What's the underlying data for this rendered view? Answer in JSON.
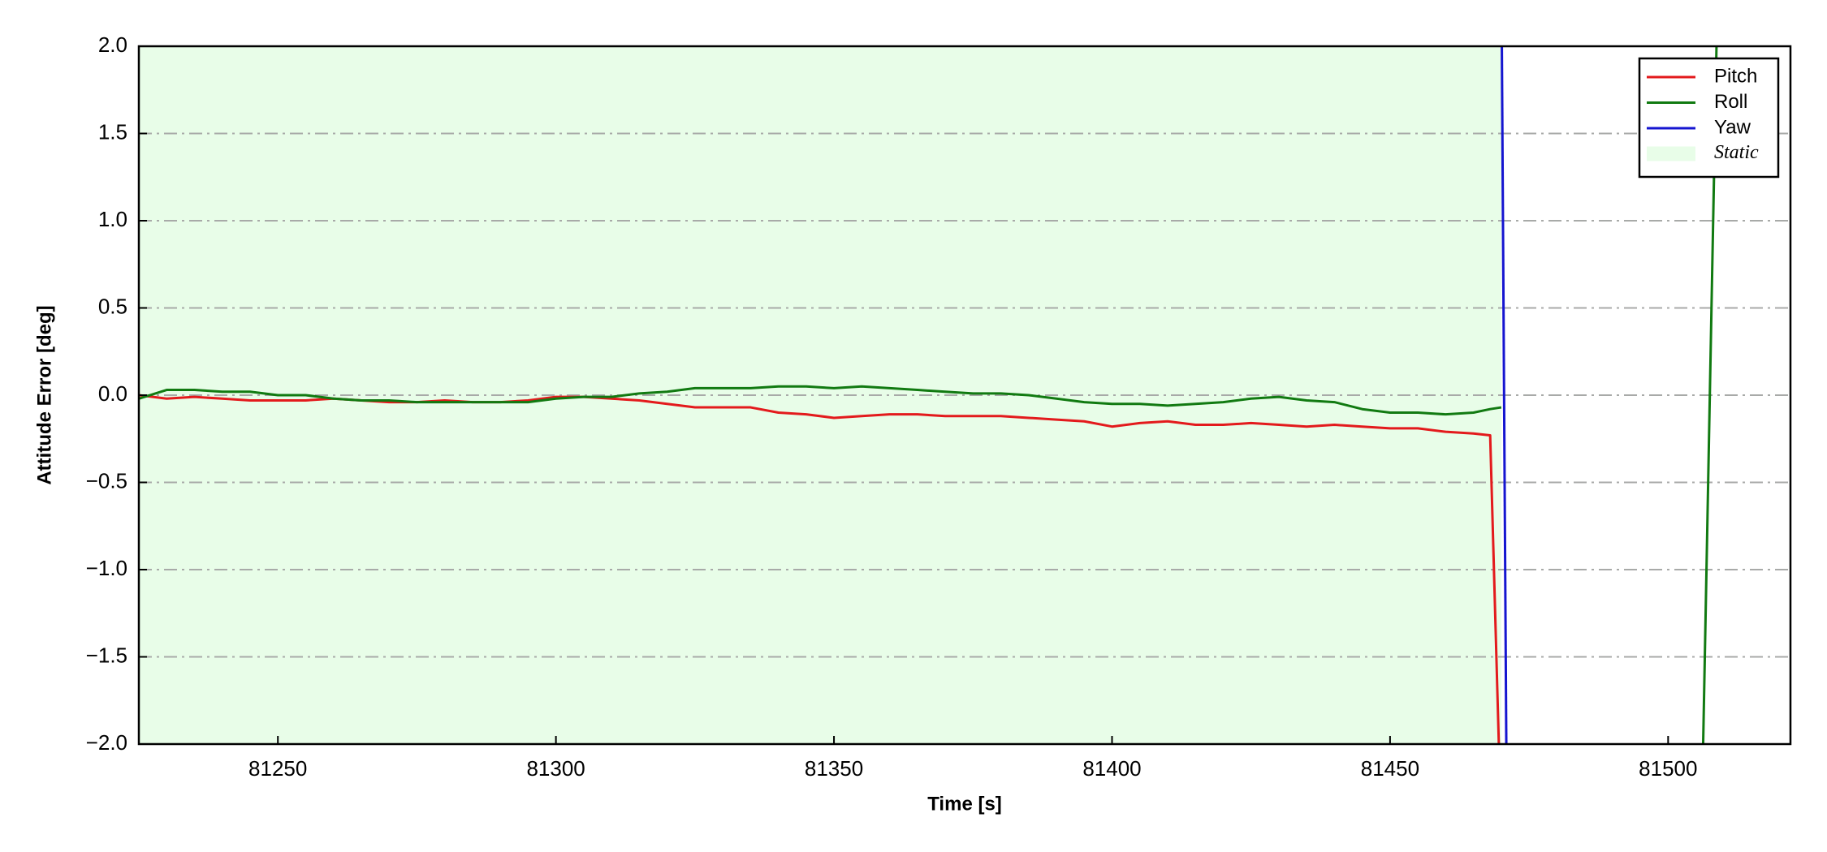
{
  "chart_data": {
    "type": "line",
    "xlabel": "Time [s]",
    "ylabel": "Attitude Error [deg]",
    "x": [
      81225,
      81230,
      81235,
      81240,
      81245,
      81250,
      81255,
      81260,
      81265,
      81270,
      81275,
      81280,
      81285,
      81290,
      81295,
      81300,
      81305,
      81310,
      81315,
      81320,
      81325,
      81330,
      81335,
      81340,
      81345,
      81350,
      81355,
      81360,
      81365,
      81370,
      81375,
      81380,
      81385,
      81390,
      81395,
      81400,
      81405,
      81410,
      81415,
      81420,
      81425,
      81430,
      81435,
      81440,
      81445,
      81450,
      81455,
      81460,
      81465,
      81468,
      81470,
      81471,
      81506,
      81509
    ],
    "series": [
      {
        "name": "Pitch",
        "color": "#e31a1c",
        "values": [
          0.0,
          -0.02,
          -0.01,
          -0.02,
          -0.03,
          -0.03,
          -0.03,
          -0.02,
          -0.03,
          -0.04,
          -0.04,
          -0.03,
          -0.04,
          -0.04,
          -0.03,
          -0.01,
          -0.01,
          -0.02,
          -0.03,
          -0.05,
          -0.07,
          -0.07,
          -0.07,
          -0.1,
          -0.11,
          -0.13,
          -0.12,
          -0.11,
          -0.11,
          -0.12,
          -0.12,
          -0.12,
          -0.13,
          -0.14,
          -0.15,
          -0.18,
          -0.16,
          -0.15,
          -0.17,
          -0.17,
          -0.16,
          -0.17,
          -0.18,
          -0.17,
          -0.18,
          -0.19,
          -0.19,
          -0.21,
          -0.22,
          -0.23,
          -2.5,
          null,
          null,
          null
        ]
      },
      {
        "name": "Roll",
        "color": "#117a11",
        "values": [
          -0.02,
          0.03,
          0.03,
          0.02,
          0.02,
          0.0,
          0.0,
          -0.02,
          -0.03,
          -0.03,
          -0.04,
          -0.04,
          -0.04,
          -0.04,
          -0.04,
          -0.02,
          -0.01,
          -0.01,
          0.01,
          0.02,
          0.04,
          0.04,
          0.04,
          0.05,
          0.05,
          0.04,
          0.05,
          0.04,
          0.03,
          0.02,
          0.01,
          0.01,
          0.0,
          -0.02,
          -0.04,
          -0.05,
          -0.05,
          -0.06,
          -0.05,
          -0.04,
          -0.02,
          -0.01,
          -0.03,
          -0.04,
          -0.08,
          -0.1,
          -0.1,
          -0.11,
          -0.1,
          -0.08,
          -0.07,
          null,
          -2.5,
          2.5
        ]
      },
      {
        "name": "Yaw",
        "color": "#1515d0",
        "values": [
          null,
          null,
          null,
          null,
          null,
          null,
          null,
          null,
          null,
          null,
          null,
          null,
          null,
          null,
          null,
          null,
          null,
          null,
          null,
          null,
          null,
          null,
          null,
          null,
          null,
          null,
          null,
          null,
          null,
          null,
          null,
          null,
          null,
          null,
          null,
          null,
          null,
          null,
          null,
          null,
          null,
          null,
          null,
          null,
          null,
          null,
          null,
          null,
          null,
          null,
          2.5,
          -2.5,
          null,
          null
        ]
      }
    ],
    "shaded_regions": [
      {
        "name": "Static",
        "color": "#e8fde8",
        "x": [
          81225,
          81470
        ]
      }
    ],
    "xlim": [
      81225,
      81522
    ],
    "ylim": [
      -2.0,
      2.0
    ],
    "xticks": [
      81250,
      81300,
      81350,
      81400,
      81450,
      81500
    ],
    "yticks": [
      {
        "value": -2.0,
        "label": "−2.0"
      },
      {
        "value": -1.5,
        "label": "−1.5"
      },
      {
        "value": -1.0,
        "label": "−1.0"
      },
      {
        "value": -0.5,
        "label": "−0.5"
      },
      {
        "value": 0.0,
        "label": "0.0"
      },
      {
        "value": 0.5,
        "label": "0.5"
      },
      {
        "value": 1.0,
        "label": "1.0"
      },
      {
        "value": 1.5,
        "label": "1.5"
      },
      {
        "value": 2.0,
        "label": "2.0"
      }
    ],
    "grid": true,
    "legend": "upper right"
  }
}
